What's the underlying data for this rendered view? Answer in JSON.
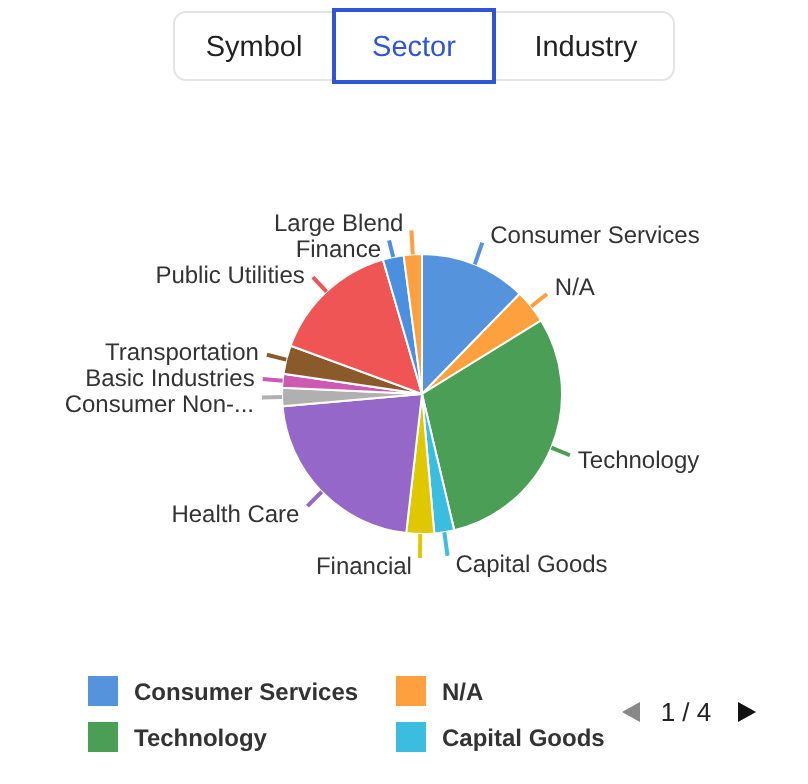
{
  "chart_data": {
    "type": "pie",
    "categories": [
      "Consumer Services",
      "N/A",
      "Technology",
      "Capital Goods",
      "Financial",
      "Health Care",
      "Consumer Non-...",
      "Basic Industries",
      "Transportation",
      "Public Utilities",
      "Finance",
      "Large Blend"
    ],
    "values": [
      12.3,
      3.9,
      30.1,
      2.3,
      3.2,
      21.8,
      2.1,
      1.6,
      3.3,
      14.9,
      2.4,
      2.1
    ],
    "colors": [
      "#5693dd",
      "#ffa03f",
      "#4a9e55",
      "#3bbde0",
      "#e0c800",
      "#9467c8",
      "#b0b0b0",
      "#cc5ab2",
      "#8a5a2a",
      "#ef5555",
      "#4a8fe0",
      "#ffa040"
    ],
    "legend": "bottom",
    "annotations": [
      "Symbol",
      "Sector",
      "Industry",
      "1 / 4"
    ]
  }
}
